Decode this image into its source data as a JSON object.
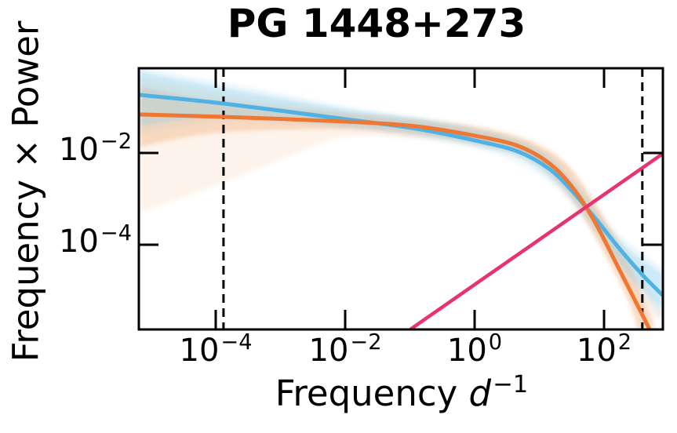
{
  "title": "PG 1448+273",
  "x_axis_label": {
    "text": "Frequency ",
    "variable": "d",
    "exponent": "−1"
  },
  "y_axis_label": "Frequency × Power",
  "colors": {
    "background": "#FFFFFF",
    "frame": "#000000",
    "dashed_line": "#000000",
    "model_blue": "#4FB2E4",
    "model_orange": "#EE7733",
    "noise_pink": "#E8336F",
    "band_blue": "#77C4E8",
    "band_orange": "#F0A060"
  },
  "chart_data": {
    "type": "line",
    "title": "PG 1448+273",
    "xlabel": "Frequency d⁻¹",
    "ylabel": "Frequency × Power",
    "xscale": "log",
    "yscale": "log",
    "grid": false,
    "legend": "none",
    "xlim": [
      6.5e-06,
      810
    ],
    "ylim": [
      1.43e-06,
      0.7
    ],
    "x_ticks": [
      {
        "value": 0.0001,
        "base": "10",
        "exp": "−4"
      },
      {
        "value": 0.01,
        "base": "10",
        "exp": "−2"
      },
      {
        "value": 1,
        "base": "10",
        "exp": "0"
      },
      {
        "value": 100,
        "base": "10",
        "exp": "2"
      }
    ],
    "y_ticks": [
      {
        "value": 0.01,
        "base": "10",
        "exp": "−2"
      },
      {
        "value": 0.0001,
        "base": "10",
        "exp": "−4"
      }
    ],
    "vlines": [
      {
        "name": "min-frequency",
        "value": 0.000132,
        "style": "dashed"
      },
      {
        "name": "max-frequency",
        "value": 390,
        "style": "dashed"
      }
    ],
    "series": [
      {
        "name": "psd-model-blue",
        "color": "#4FB2E4",
        "width": 5,
        "smooth": true,
        "points": [
          [
            6.7e-06,
            0.184
          ],
          [
            0.000132,
            0.119
          ],
          [
            0.0102,
            0.0543
          ],
          [
            0.124,
            0.0339
          ],
          [
            1.0,
            0.0188
          ],
          [
            4.62,
            0.0108
          ],
          [
            14.1,
            0.00455
          ],
          [
            32.6,
            0.00145
          ],
          [
            71,
            0.000396
          ],
          [
            173,
            8.2e-05
          ],
          [
            398,
            2.15e-05
          ],
          [
            798,
            8e-06
          ]
        ]
      },
      {
        "name": "psd-model-orange",
        "color": "#EE7733",
        "width": 5,
        "smooth": true,
        "points": [
          [
            6.7e-06,
            0.0689
          ],
          [
            0.000132,
            0.0611
          ],
          [
            0.0102,
            0.0483
          ],
          [
            0.124,
            0.0381
          ],
          [
            1.0,
            0.0238
          ],
          [
            4.62,
            0.0143
          ],
          [
            14.1,
            0.006
          ],
          [
            32.6,
            0.00177
          ],
          [
            71,
            0.000326
          ],
          [
            173,
            2.84e-05
          ],
          [
            378,
            3.26e-06
          ],
          [
            500,
            1.48e-06
          ]
        ]
      },
      {
        "name": "poisson-noise-line",
        "color": "#E8336F",
        "width": 4.5,
        "smooth": false,
        "points": [
          [
            0.105,
            1.48e-06
          ],
          [
            794,
            0.0095
          ]
        ]
      }
    ],
    "bands": [
      {
        "name": "confidence-band-orange-outer",
        "color": "#F0A060",
        "opacity": 0.13,
        "upper": [
          [
            6.7e-06,
            0.438
          ],
          [
            0.000206,
            0.184
          ],
          [
            0.0102,
            0.0838
          ],
          [
            1.0,
            0.0412
          ],
          [
            14.1,
            0.0127
          ],
          [
            49.3,
            0.00177
          ],
          [
            229,
            7.59e-05
          ],
          [
            798,
            3.26e-06
          ]
        ],
        "lower": [
          [
            6.7e-06,
            0.000502
          ],
          [
            0.000118,
            0.00215
          ],
          [
            0.00192,
            0.0104
          ],
          [
            0.0102,
            0.022
          ],
          [
            0.124,
            0.0203
          ],
          [
            1.0,
            0.0137
          ],
          [
            4.62,
            0.0079
          ],
          [
            14.1,
            0.00284
          ],
          [
            49.3,
            0.000339
          ],
          [
            173,
            1.91e-05
          ],
          [
            398,
            1.48e-06
          ]
        ]
      },
      {
        "name": "confidence-band-blue-outer",
        "color": "#77C4E8",
        "opacity": 0.13,
        "upper": [
          [
            6.7e-06,
            0.73
          ],
          [
            0.000118,
            0.36
          ],
          [
            0.0102,
            0.106
          ],
          [
            1.0,
            0.0366
          ],
          [
            14.1,
            0.00925
          ],
          [
            75,
            0.000446
          ],
          [
            798,
            3.19e-05
          ]
        ],
        "lower": [
          [
            6.7e-06,
            0.0257
          ],
          [
            0.000206,
            0.0483
          ],
          [
            0.0102,
            0.0326
          ],
          [
            1.0,
            0.0127
          ],
          [
            14.1,
            0.00243
          ],
          [
            75,
            0.000167
          ],
          [
            798,
            1.88e-06
          ]
        ]
      },
      {
        "name": "confidence-band-orange-inner",
        "color": "#F0A060",
        "opacity": 0.3,
        "upper": [
          [
            6.7e-06,
            0.273
          ],
          [
            0.000118,
            0.134
          ],
          [
            0.0102,
            0.0716
          ],
          [
            0.124,
            0.0522
          ],
          [
            1.0,
            0.0366
          ],
          [
            4.62,
            0.022
          ],
          [
            14.1,
            0.0108
          ],
          [
            32.5,
            0.00421
          ],
          [
            75,
            0.000745
          ],
          [
            229,
            4.38e-05
          ],
          [
            620,
            1.48e-06
          ]
        ],
        "lower": [
          [
            6.7e-06,
            0.0137
          ],
          [
            0.000118,
            0.0278
          ],
          [
            0.0102,
            0.0326
          ],
          [
            0.124,
            0.0247
          ],
          [
            1.0,
            0.0167
          ],
          [
            4.62,
            0.01
          ],
          [
            14.1,
            0.00389
          ],
          [
            32.5,
            0.000942
          ],
          [
            75,
            0.000137
          ],
          [
            229,
            6.62e-06
          ],
          [
            320,
            1.48e-06
          ]
        ]
      },
      {
        "name": "confidence-band-blue-inner",
        "color": "#77C4E8",
        "opacity": 0.28,
        "upper": [
          [
            6.7e-06,
            0.6
          ],
          [
            0.000118,
            0.273
          ],
          [
            0.0102,
            0.0906
          ],
          [
            0.124,
            0.0565
          ],
          [
            1.0,
            0.0326
          ],
          [
            4.62,
            0.018
          ],
          [
            14.1,
            0.0079
          ],
          [
            49.3,
            0.00129
          ],
          [
            173,
            0.000122
          ],
          [
            798,
            2.33e-05
          ]
        ],
        "lower": [
          [
            6.7e-06,
            0.0381
          ],
          [
            0.000118,
            0.0611
          ],
          [
            0.0102,
            0.0381
          ],
          [
            0.124,
            0.0257
          ],
          [
            1.0,
            0.0148
          ],
          [
            4.62,
            0.00855
          ],
          [
            14.1,
            0.00307
          ],
          [
            49.3,
            0.0005
          ],
          [
            173,
            3.74e-05
          ],
          [
            798,
            3.81e-06
          ]
        ]
      }
    ]
  }
}
